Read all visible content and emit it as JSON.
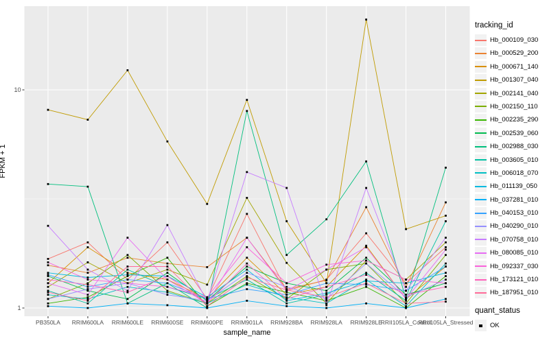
{
  "figure": {
    "panel_bg": "#EBEBEB",
    "grid_color": "#FFFFFF",
    "tick_label_color": "#4D4D4D",
    "point_color": "#000000"
  },
  "chart_data": {
    "type": "line",
    "title": "",
    "xlabel": "sample_name",
    "ylabel": "FPKM + 1",
    "y_scale": "log10",
    "y_ticks": [
      1,
      10
    ],
    "y_minor_ticks": [
      3.162
    ],
    "ylim": [
      0.92,
      24.5
    ],
    "grid": true,
    "legend_position": "right",
    "categories": [
      "PB350LA",
      "RRIM600LA",
      "RRIM600LE",
      "RRIM600SE",
      "RRIM600PE",
      "RRIM901LA",
      "RRIM928BA",
      "RRIM928LA",
      "RRIM928LE",
      "RRII105LA_Control",
      "RRII105LA_Stressed"
    ],
    "series": [
      {
        "name": "Hb_000109_030",
        "color": "#F8766D",
        "values": [
          1.68,
          2.0,
          1.35,
          2.0,
          1.1,
          2.7,
          1.2,
          1.35,
          2.2,
          1.3,
          1.9
        ]
      },
      {
        "name": "Hb_000529_200",
        "color": "#EA8331",
        "values": [
          1.57,
          1.45,
          1.7,
          1.6,
          1.54,
          2.1,
          1.22,
          1.34,
          2.9,
          1.25,
          3.05
        ]
      },
      {
        "name": "Hb_000671_140",
        "color": "#D89000",
        "values": [
          1.3,
          1.9,
          1.45,
          1.35,
          1.1,
          1.7,
          1.15,
          1.25,
          1.93,
          1.1,
          1.55
        ]
      },
      {
        "name": "Hb_001307_040",
        "color": "#C09B00",
        "values": [
          8.1,
          7.3,
          12.3,
          5.8,
          3.0,
          9.0,
          2.5,
          1.3,
          21.0,
          2.3,
          2.65
        ]
      },
      {
        "name": "Hb_002141_040",
        "color": "#A3A500",
        "values": [
          1.25,
          1.62,
          1.3,
          1.5,
          1.28,
          3.2,
          1.61,
          1.05,
          1.65,
          1.35,
          2.0
        ]
      },
      {
        "name": "Hb_002150_110",
        "color": "#7CAE00",
        "values": [
          1.1,
          1.3,
          1.75,
          1.2,
          1.05,
          1.4,
          1.1,
          1.5,
          1.6,
          1.05,
          1.75
        ]
      },
      {
        "name": "Hb_002235_290",
        "color": "#39B600",
        "values": [
          1.05,
          1.12,
          1.4,
          1.7,
          1.02,
          1.3,
          1.18,
          1.08,
          1.25,
          1.0,
          1.4
        ]
      },
      {
        "name": "Hb_002539_060",
        "color": "#00BB4E",
        "values": [
          1.4,
          1.2,
          1.1,
          1.45,
          1.08,
          1.55,
          1.3,
          1.2,
          1.7,
          1.15,
          1.3
        ]
      },
      {
        "name": "Hb_002988_030",
        "color": "#00BF7D",
        "values": [
          3.7,
          3.6,
          1.05,
          1.3,
          1.0,
          8.0,
          1.75,
          2.55,
          4.7,
          1.1,
          4.4
        ]
      },
      {
        "name": "Hb_003605_010",
        "color": "#00C1A3",
        "values": [
          1.2,
          1.05,
          1.5,
          1.25,
          1.1,
          1.35,
          1.05,
          1.15,
          1.45,
          1.08,
          2.5
        ]
      },
      {
        "name": "Hb_006018_070",
        "color": "#00BFC4",
        "values": [
          1.15,
          1.1,
          1.25,
          1.18,
          1.05,
          1.28,
          1.12,
          1.05,
          1.35,
          1.02,
          1.6
        ]
      },
      {
        "name": "Hb_011139_050",
        "color": "#00BAE0",
        "values": [
          1.45,
          1.38,
          1.42,
          1.4,
          1.12,
          1.5,
          1.08,
          1.17,
          1.33,
          1.3,
          1.45
        ]
      },
      {
        "name": "Hb_037281_010",
        "color": "#00B0F6",
        "values": [
          1.02,
          1.0,
          1.05,
          1.03,
          1.0,
          1.08,
          1.02,
          1.0,
          1.05,
          1.0,
          1.1
        ]
      },
      {
        "name": "Hb_040153_010",
        "color": "#35A2FF",
        "values": [
          1.42,
          1.25,
          1.35,
          1.3,
          1.1,
          1.22,
          1.15,
          1.3,
          1.28,
          1.2,
          1.55
        ]
      },
      {
        "name": "Hb_040290_010",
        "color": "#9590FF",
        "values": [
          1.1,
          1.22,
          1.3,
          1.15,
          1.08,
          1.45,
          1.25,
          1.1,
          1.6,
          1.12,
          1.35
        ]
      },
      {
        "name": "Hb_070758_010",
        "color": "#C77CFF",
        "values": [
          2.38,
          1.5,
          1.2,
          2.4,
          1.07,
          4.2,
          3.55,
          1.03,
          3.55,
          1.2,
          2.1
        ]
      },
      {
        "name": "Hb_080085_010",
        "color": "#E76BF3",
        "values": [
          1.3,
          1.15,
          2.1,
          1.35,
          1.05,
          2.1,
          1.2,
          1.5,
          1.9,
          1.1,
          1.85
        ]
      },
      {
        "name": "Hb_092337_030",
        "color": "#FA62DB",
        "values": [
          1.62,
          1.35,
          1.3,
          1.25,
          1.12,
          1.9,
          1.3,
          1.58,
          1.65,
          1.35,
          1.3
        ]
      },
      {
        "name": "Hb_173121_010",
        "color": "#FF62BC",
        "values": [
          1.35,
          1.28,
          1.18,
          1.4,
          1.05,
          1.6,
          1.1,
          1.25,
          1.42,
          1.15,
          1.25
        ]
      },
      {
        "name": "Hb_187951_010",
        "color": "#FF6A98",
        "values": [
          1.18,
          1.08,
          1.55,
          1.55,
          1.02,
          1.38,
          1.21,
          1.12,
          1.3,
          1.05,
          1.07
        ]
      }
    ]
  },
  "legend": {
    "tracking_title": "tracking_id",
    "quant_title": "quant_status",
    "quant_ok": "OK"
  }
}
